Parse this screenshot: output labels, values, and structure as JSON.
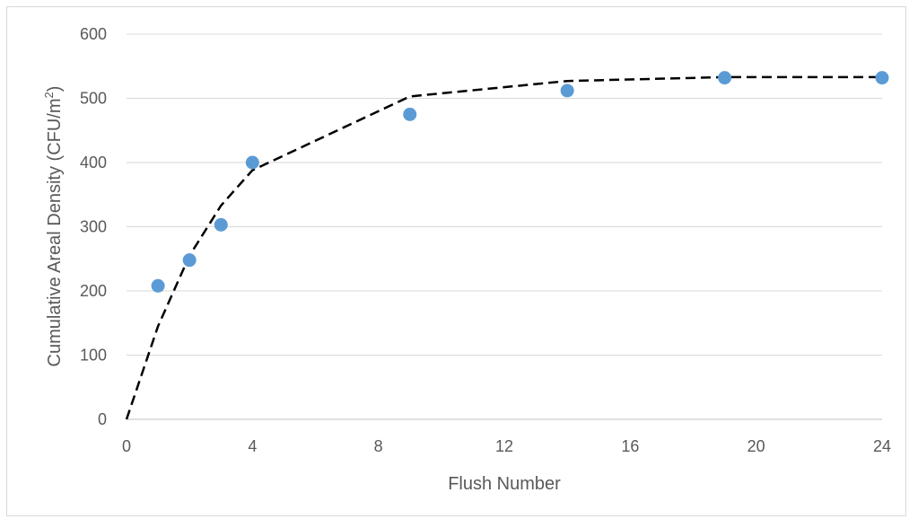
{
  "chart_data": {
    "type": "scatter",
    "title": "",
    "xlabel": "Flush Number",
    "ylabel": "Cumulative Areal Density (CFU/m",
    "ylabel_superscript": "2",
    "ylabel_suffix": ")",
    "xlim": [
      0,
      24
    ],
    "ylim": [
      0,
      600
    ],
    "x_ticks": [
      0,
      4,
      8,
      12,
      16,
      20,
      24
    ],
    "y_ticks": [
      0,
      100,
      200,
      300,
      400,
      500,
      600
    ],
    "grid": true,
    "legend": "none",
    "series": [
      {
        "kind": "markers",
        "color": "#5b9bd5",
        "x": [
          1,
          2,
          3,
          4,
          9,
          14,
          19,
          24
        ],
        "y": [
          208,
          248,
          303,
          400,
          475,
          512,
          532,
          532
        ]
      },
      {
        "kind": "dashed-line",
        "color": "#000000",
        "x": [
          0,
          1,
          2,
          3,
          4,
          9,
          14,
          19,
          24
        ],
        "y": [
          0,
          145,
          255,
          333,
          388,
          503,
          527,
          533,
          533
        ]
      }
    ]
  }
}
